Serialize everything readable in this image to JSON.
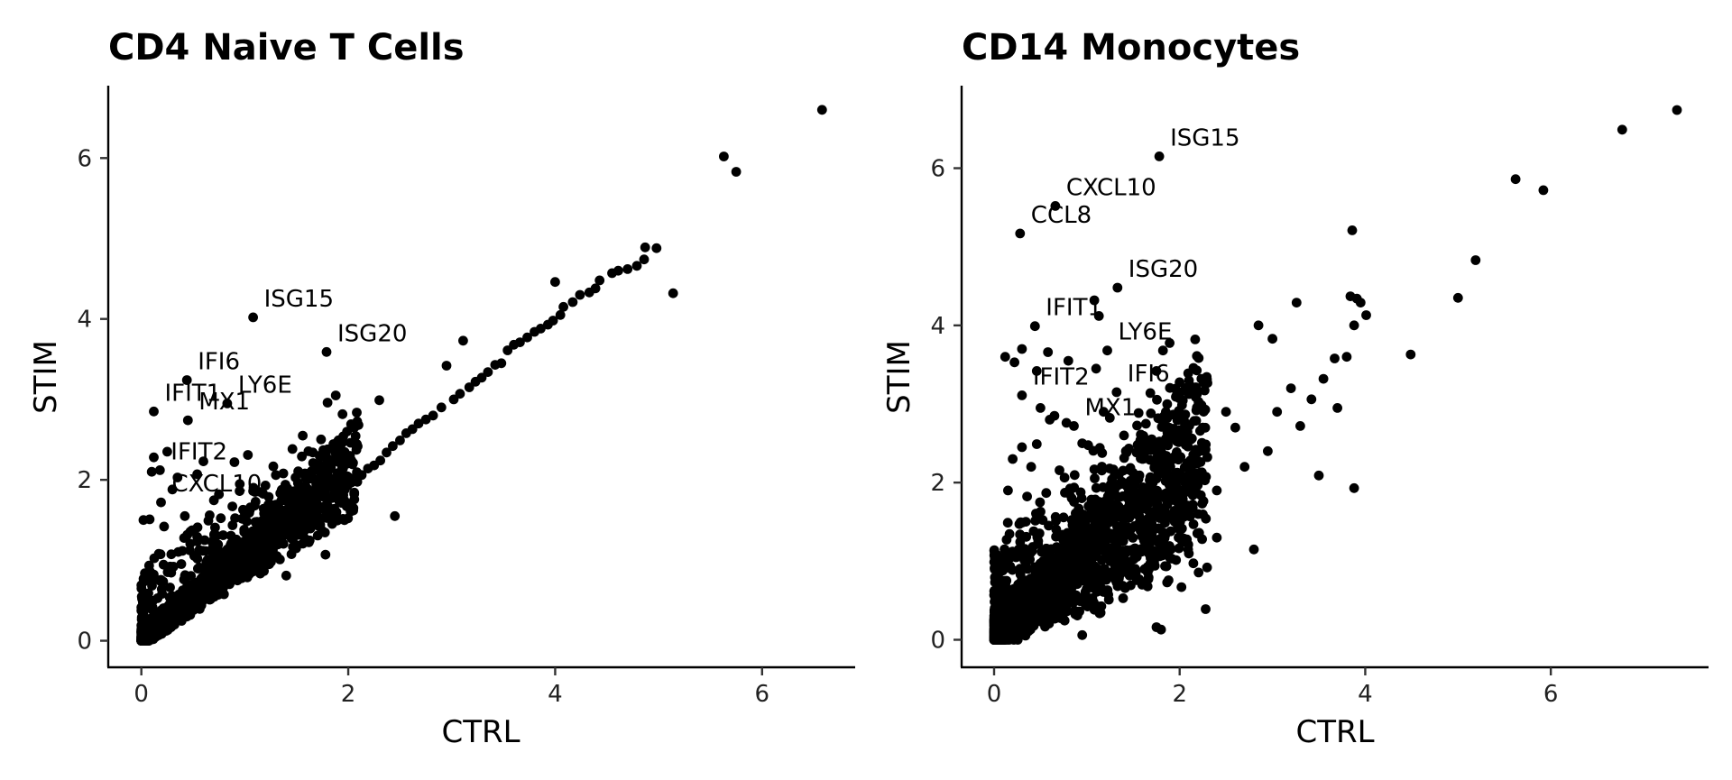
{
  "chart_data": [
    {
      "type": "scatter",
      "title": "CD4 Naive T Cells",
      "xlabel": "CTRL",
      "ylabel": "STIM",
      "xlim": [
        -0.32,
        6.9
      ],
      "ylim": [
        -0.33,
        6.9
      ],
      "xticks": [
        0,
        2,
        4,
        6
      ],
      "yticks": [
        0,
        2,
        4,
        6
      ],
      "grid": false,
      "legend": "none",
      "point_color": "#000000",
      "dense_cloud_seed": 11,
      "labeled_points": [
        {
          "x": 1.08,
          "y": 4.02,
          "label": "ISG15"
        },
        {
          "x": 1.79,
          "y": 3.59,
          "label": "ISG20"
        },
        {
          "x": 0.44,
          "y": 3.24,
          "label": "IFI6"
        },
        {
          "x": 0.12,
          "y": 2.85,
          "label": "IFIT1"
        },
        {
          "x": 0.83,
          "y": 2.95,
          "label": "LY6E"
        },
        {
          "x": 0.45,
          "y": 2.74,
          "label": "MX1"
        },
        {
          "x": 0.18,
          "y": 2.12,
          "label": "IFIT2"
        },
        {
          "x": 0.19,
          "y": 1.72,
          "label": "CXCL10"
        }
      ],
      "points": [
        [
          6.58,
          6.6
        ],
        [
          5.63,
          6.02
        ],
        [
          5.75,
          5.83
        ],
        [
          5.14,
          4.32
        ],
        [
          4.98,
          4.88
        ],
        [
          4.87,
          4.89
        ],
        [
          4.86,
          4.74
        ],
        [
          4.79,
          4.66
        ],
        [
          4.7,
          4.62
        ],
        [
          4.61,
          4.6
        ],
        [
          4.55,
          4.57
        ],
        [
          4.43,
          4.48
        ],
        [
          4.39,
          4.38
        ],
        [
          4.33,
          4.33
        ],
        [
          4.24,
          4.3
        ],
        [
          4.17,
          4.21
        ],
        [
          4.08,
          4.15
        ],
        [
          4.0,
          4.46
        ],
        [
          4.05,
          4.05
        ],
        [
          3.98,
          3.98
        ],
        [
          3.93,
          3.93
        ],
        [
          3.86,
          3.88
        ],
        [
          3.8,
          3.84
        ],
        [
          3.73,
          3.77
        ],
        [
          3.66,
          3.71
        ],
        [
          3.6,
          3.68
        ],
        [
          3.54,
          3.61
        ],
        [
          3.48,
          3.45
        ],
        [
          3.42,
          3.43
        ],
        [
          3.35,
          3.34
        ],
        [
          3.29,
          3.27
        ],
        [
          3.23,
          3.22
        ],
        [
          3.17,
          3.15
        ],
        [
          3.11,
          3.73
        ],
        [
          3.08,
          3.07
        ],
        [
          3.02,
          3.0
        ],
        [
          2.95,
          3.42
        ],
        [
          2.9,
          2.9
        ],
        [
          2.82,
          2.8
        ],
        [
          2.75,
          2.75
        ],
        [
          2.68,
          2.7
        ],
        [
          2.62,
          2.63
        ],
        [
          2.56,
          2.58
        ],
        [
          2.5,
          2.49
        ],
        [
          2.43,
          2.42
        ],
        [
          2.45,
          1.55
        ],
        [
          2.37,
          2.34
        ],
        [
          2.31,
          2.24
        ],
        [
          2.25,
          2.18
        ],
        [
          2.19,
          2.14
        ],
        [
          2.13,
          2.06
        ],
        [
          2.3,
          2.99
        ],
        [
          1.8,
          2.96
        ],
        [
          1.56,
          2.55
        ],
        [
          1.76,
          2.37
        ],
        [
          1.92,
          2.27
        ],
        [
          1.03,
          2.31
        ],
        [
          0.9,
          2.22
        ],
        [
          0.6,
          2.23
        ],
        [
          0.25,
          2.35
        ],
        [
          0.12,
          2.28
        ],
        [
          0.35,
          2.03
        ],
        [
          0.54,
          2.07
        ],
        [
          1.2,
          1.93
        ],
        [
          0.1,
          2.1
        ],
        [
          0.02,
          1.5
        ],
        [
          0.08,
          1.51
        ],
        [
          0.3,
          1.88
        ],
        [
          0.75,
          1.82
        ],
        [
          0.95,
          1.86
        ],
        [
          1.3,
          2.06
        ],
        [
          1.48,
          1.86
        ],
        [
          0.66,
          1.56
        ],
        [
          0.22,
          1.42
        ],
        [
          1.4,
          0.81
        ],
        [
          1.78,
          1.07
        ],
        [
          2.05,
          1.65
        ],
        [
          0.42,
          1.55
        ],
        [
          0.88,
          1.67
        ],
        [
          1.1,
          1.85
        ]
      ]
    },
    {
      "type": "scatter",
      "title": "CD14 Monocytes",
      "xlabel": "CTRL",
      "ylabel": "STIM",
      "xlim": [
        -0.35,
        7.7
      ],
      "ylim": [
        -0.35,
        7.05
      ],
      "xticks": [
        0,
        2,
        4,
        6
      ],
      "yticks": [
        0,
        2,
        4,
        6
      ],
      "grid": false,
      "legend": "none",
      "point_color": "#000000",
      "dense_cloud_seed": 23,
      "labeled_points": [
        {
          "x": 1.78,
          "y": 6.15,
          "label": "ISG15"
        },
        {
          "x": 0.66,
          "y": 5.52,
          "label": "CXCL10"
        },
        {
          "x": 0.28,
          "y": 5.17,
          "label": "CCL8"
        },
        {
          "x": 1.33,
          "y": 4.48,
          "label": "ISG20"
        },
        {
          "x": 0.44,
          "y": 3.99,
          "label": "IFIT1"
        },
        {
          "x": 1.22,
          "y": 3.68,
          "label": "LY6E"
        },
        {
          "x": 1.32,
          "y": 3.15,
          "label": "IFI6"
        },
        {
          "x": 0.3,
          "y": 3.11,
          "label": "IFIT2"
        },
        {
          "x": 0.86,
          "y": 2.72,
          "label": "MX1"
        }
      ],
      "points": [
        [
          7.36,
          6.74
        ],
        [
          6.77,
          6.49
        ],
        [
          5.62,
          5.86
        ],
        [
          5.92,
          5.72
        ],
        [
          5.19,
          4.83
        ],
        [
          5.0,
          4.35
        ],
        [
          4.49,
          3.63
        ],
        [
          3.86,
          5.21
        ],
        [
          4.01,
          4.13
        ],
        [
          3.84,
          4.37
        ],
        [
          3.91,
          4.34
        ],
        [
          3.95,
          4.29
        ],
        [
          3.88,
          4.0
        ],
        [
          3.67,
          3.58
        ],
        [
          3.55,
          3.32
        ],
        [
          3.26,
          4.29
        ],
        [
          3.42,
          3.06
        ],
        [
          3.3,
          2.72
        ],
        [
          3.5,
          2.09
        ],
        [
          3.88,
          1.93
        ],
        [
          3.7,
          2.95
        ],
        [
          3.8,
          3.6
        ],
        [
          3.2,
          3.2
        ],
        [
          3.05,
          2.9
        ],
        [
          2.95,
          2.4
        ],
        [
          2.85,
          4.0
        ],
        [
          3.0,
          3.83
        ],
        [
          2.6,
          2.7
        ],
        [
          2.7,
          2.2
        ],
        [
          2.5,
          2.9
        ],
        [
          2.4,
          1.9
        ],
        [
          2.2,
          1.6
        ],
        [
          2.8,
          1.15
        ],
        [
          2.28,
          0.39
        ],
        [
          2.1,
          3.3
        ],
        [
          2.15,
          3.21
        ],
        [
          1.95,
          2.6
        ],
        [
          1.75,
          3.42
        ],
        [
          1.82,
          3.68
        ],
        [
          1.08,
          4.32
        ],
        [
          1.13,
          4.12
        ],
        [
          0.58,
          3.66
        ],
        [
          0.46,
          3.42
        ],
        [
          0.22,
          3.53
        ],
        [
          0.12,
          3.6
        ],
        [
          0.3,
          3.7
        ],
        [
          0.8,
          3.55
        ],
        [
          1.1,
          3.45
        ],
        [
          0.65,
          2.85
        ],
        [
          0.5,
          2.95
        ],
        [
          0.78,
          2.76
        ],
        [
          0.3,
          2.45
        ],
        [
          0.46,
          2.49
        ],
        [
          1.18,
          2.9
        ],
        [
          1.4,
          2.6
        ],
        [
          1.6,
          2.3
        ],
        [
          1.75,
          2.05
        ],
        [
          1.9,
          2.2
        ],
        [
          0.6,
          2.8
        ],
        [
          0.95,
          2.5
        ],
        [
          1.3,
          2.1
        ],
        [
          0.4,
          2.2
        ],
        [
          0.15,
          1.9
        ],
        [
          1.8,
          0.13
        ],
        [
          1.75,
          0.16
        ],
        [
          0.95,
          0.06
        ],
        [
          2.0,
          1.4
        ],
        [
          2.4,
          1.3
        ],
        [
          1.45,
          1.79
        ],
        [
          0.2,
          2.3
        ]
      ]
    }
  ]
}
